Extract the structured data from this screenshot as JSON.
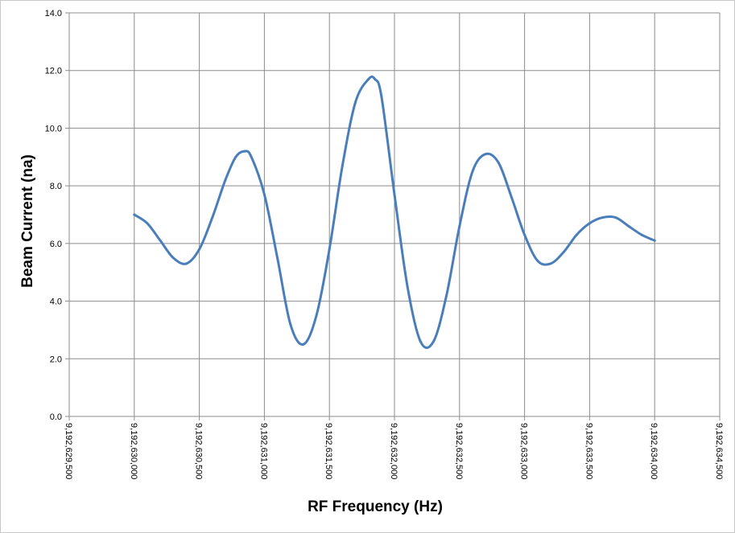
{
  "chart_data": {
    "type": "line",
    "title": "",
    "xlabel": "RF Frequency (Hz)",
    "ylabel": "Beam Current (na)",
    "xlim": [
      9192629500,
      9192634500
    ],
    "ylim": [
      0,
      14
    ],
    "x_ticks": [
      "9,192,629,500",
      "9,192,630,000",
      "9,192,630,500",
      "9,192,631,000",
      "9,192,631,500",
      "9,192,632,000",
      "9,192,632,500",
      "9,192,633,000",
      "9,192,633,500",
      "9,192,634,000",
      "9,192,634,500"
    ],
    "y_ticks": [
      "0.0",
      "2.0",
      "4.0",
      "6.0",
      "8.0",
      "10.0",
      "12.0",
      "14.0"
    ],
    "grid": true,
    "legend": "none",
    "line_color": "#4a7ebb",
    "series": [
      {
        "x": [
          9192630000,
          9192630100,
          9192630200,
          9192630300,
          9192630400,
          9192630500,
          9192630600,
          9192630700,
          9192630780,
          9192630850,
          9192630900,
          9192631000,
          9192631100,
          9192631200,
          9192631300,
          9192631400,
          9192631500,
          9192631600,
          9192631700,
          9192631800,
          9192631850,
          9192631900,
          9192632000,
          9192632100,
          9192632200,
          9192632300,
          9192632400,
          9192632500,
          9192632600,
          9192632700,
          9192632800,
          9192632900,
          9192633000,
          9192633100,
          9192633200,
          9192633300,
          9192633400,
          9192633500,
          9192633600,
          9192633700,
          9192633800,
          9192633900,
          9192634000
        ],
        "y": [
          7.0,
          6.7,
          6.1,
          5.5,
          5.3,
          5.8,
          6.9,
          8.2,
          9.0,
          9.2,
          9.0,
          7.7,
          5.5,
          3.2,
          2.5,
          3.5,
          5.8,
          8.7,
          10.9,
          11.7,
          11.7,
          11.1,
          7.7,
          4.5,
          2.6,
          2.6,
          4.2,
          6.6,
          8.5,
          9.1,
          8.8,
          7.6,
          6.3,
          5.4,
          5.3,
          5.7,
          6.3,
          6.7,
          6.9,
          6.9,
          6.6,
          6.3,
          6.1
        ]
      }
    ]
  }
}
